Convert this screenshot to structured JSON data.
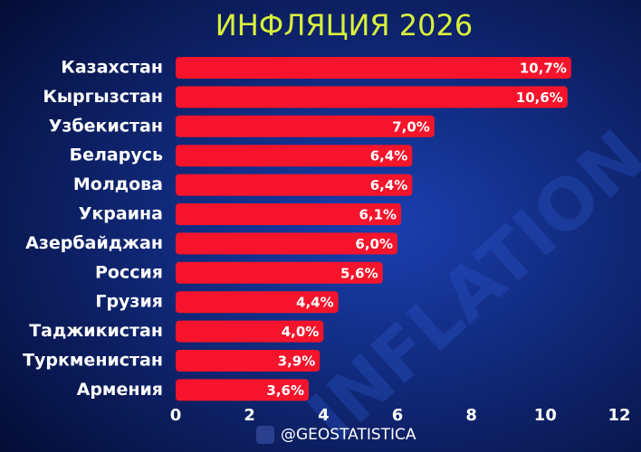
{
  "chart_data": {
    "type": "bar",
    "orientation": "horizontal",
    "title": "ИНФЛЯЦИЯ 2026",
    "categories": [
      "Казахстан",
      "Кыргызстан",
      "Узбекистан",
      "Беларусь",
      "Молдова",
      "Украина",
      "Азербайджан",
      "Россия",
      "Грузия",
      "Таджикистан",
      "Туркменистан",
      "Армения"
    ],
    "values": [
      10.7,
      10.6,
      7.0,
      6.4,
      6.4,
      6.1,
      6.0,
      5.6,
      4.4,
      4.0,
      3.9,
      3.6
    ],
    "value_labels": [
      "10,7%",
      "10,6%",
      "7,0%",
      "6,4%",
      "6,4%",
      "6,1%",
      "6,0%",
      "5,6%",
      "4,4%",
      "4,0%",
      "3,9%",
      "3,6%"
    ],
    "color": "#f5142b",
    "xlim": [
      0,
      12
    ],
    "xticks": [
      0,
      2,
      4,
      6,
      8,
      10,
      12
    ],
    "background_text": "INFLATION",
    "footer": "@GEOSTATISTICA"
  }
}
